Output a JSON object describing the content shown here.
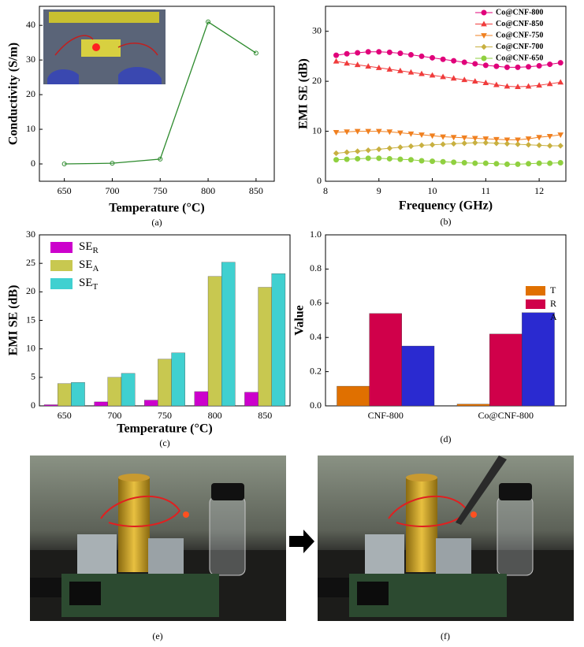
{
  "chart_data": [
    {
      "type": "line",
      "caption": "(a)",
      "xlabel": "Temperature (°C)",
      "ylabel": "Conductivity (S/m)",
      "x": [
        650,
        700,
        750,
        800,
        850
      ],
      "values": [
        0,
        0.2,
        1.4,
        41,
        32
      ],
      "color": "#2e8b2e",
      "marker": "circle",
      "xlim": [
        624,
        869
      ],
      "xticks": [
        650,
        700,
        750,
        800,
        850
      ],
      "ylim": [
        -5,
        45.5
      ],
      "yticks": [
        0,
        10,
        20,
        30,
        40
      ]
    },
    {
      "type": "line",
      "caption": "(b)",
      "xlabel": "Frequency (GHz)",
      "ylabel": "EMI SE (dB)",
      "x": [
        8.2,
        8.4,
        8.6,
        8.8,
        9.0,
        9.2,
        9.4,
        9.6,
        9.8,
        10.0,
        10.2,
        10.4,
        10.6,
        10.8,
        11.0,
        11.2,
        11.4,
        11.6,
        11.8,
        12.0,
        12.2,
        12.4
      ],
      "series": [
        {
          "name": "Co@CNF-800",
          "color": "#e0007a",
          "marker": "circle",
          "values": [
            25.2,
            25.5,
            25.7,
            25.9,
            25.9,
            25.8,
            25.6,
            25.3,
            25.0,
            24.7,
            24.4,
            24.1,
            23.8,
            23.5,
            23.2,
            23.0,
            22.8,
            22.8,
            22.9,
            23.1,
            23.4,
            23.7
          ]
        },
        {
          "name": "Co@CNF-850",
          "color": "#f03c3c",
          "marker": "triangle-up",
          "values": [
            24.0,
            23.6,
            23.3,
            23.0,
            22.7,
            22.4,
            22.1,
            21.8,
            21.5,
            21.2,
            20.9,
            20.6,
            20.3,
            20.0,
            19.7,
            19.3,
            19.0,
            18.9,
            19.0,
            19.2,
            19.5,
            19.8
          ]
        },
        {
          "name": "Co@CNF-750",
          "color": "#f08020",
          "marker": "triangle-down",
          "values": [
            9.8,
            9.9,
            10.0,
            10.0,
            10.0,
            9.9,
            9.7,
            9.5,
            9.3,
            9.1,
            8.9,
            8.8,
            8.7,
            8.6,
            8.5,
            8.4,
            8.3,
            8.3,
            8.5,
            8.8,
            9.0,
            9.3
          ]
        },
        {
          "name": "Co@CNF-700",
          "color": "#c8b040",
          "marker": "diamond",
          "values": [
            5.6,
            5.8,
            6.0,
            6.2,
            6.4,
            6.6,
            6.8,
            7.0,
            7.2,
            7.3,
            7.4,
            7.5,
            7.6,
            7.7,
            7.7,
            7.6,
            7.5,
            7.4,
            7.3,
            7.2,
            7.1,
            7.1
          ]
        },
        {
          "name": "Co@CNF-650",
          "color": "#90d040",
          "marker": "circle",
          "values": [
            4.3,
            4.4,
            4.5,
            4.6,
            4.6,
            4.5,
            4.4,
            4.3,
            4.1,
            4.0,
            3.9,
            3.8,
            3.7,
            3.6,
            3.6,
            3.5,
            3.4,
            3.4,
            3.5,
            3.6,
            3.6,
            3.7
          ]
        }
      ],
      "xlim": [
        8,
        12.5
      ],
      "xticks": [
        8,
        9,
        10,
        11,
        12
      ],
      "ylim": [
        0,
        35
      ],
      "yticks": [
        0,
        10,
        20,
        30
      ]
    },
    {
      "type": "bar",
      "caption": "(c)",
      "xlabel": "Temperature (°C)",
      "ylabel": "EMI SE (dB)",
      "categories": [
        "650",
        "700",
        "750",
        "800",
        "850"
      ],
      "series": [
        {
          "name": "SER",
          "color": "#cc00cc",
          "values": [
            0.2,
            0.7,
            1.0,
            2.5,
            2.4
          ]
        },
        {
          "name": "SEA",
          "color": "#c8c850",
          "values": [
            3.9,
            5.0,
            8.2,
            22.7,
            20.8
          ]
        },
        {
          "name": "SET",
          "color": "#40d0d0",
          "values": [
            4.1,
            5.7,
            9.3,
            25.2,
            23.2
          ]
        }
      ],
      "ylim": [
        0,
        30
      ],
      "yticks": [
        0,
        5,
        10,
        15,
        20,
        25,
        30
      ]
    },
    {
      "type": "bar",
      "caption": "(d)",
      "ylabel": "Value",
      "categories": [
        "CNF-800",
        "Co@CNF-800"
      ],
      "series": [
        {
          "name": "T",
          "color": "#e07000",
          "values": [
            0.115,
            0.01
          ]
        },
        {
          "name": "R",
          "color": "#d0004a",
          "values": [
            0.54,
            0.42
          ]
        },
        {
          "name": "A",
          "color": "#2a2ad0",
          "values": [
            0.35,
            0.545
          ]
        }
      ],
      "ylim": [
        0,
        1
      ],
      "yticks": [
        {
          "value": 0,
          "label": "0.0"
        },
        0.2,
        0.4,
        0.6,
        0.8,
        {
          "value": 1,
          "label": "1.0"
        }
      ]
    }
  ],
  "photos": [
    {
      "caption": "(e)"
    },
    {
      "caption": "(f)"
    }
  ]
}
